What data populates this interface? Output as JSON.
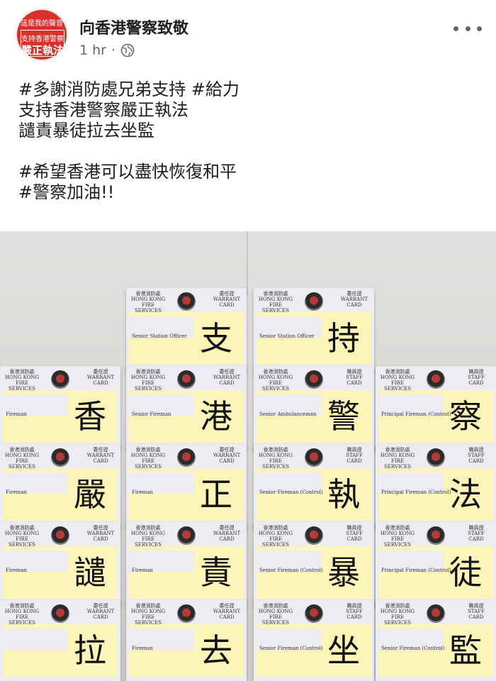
{
  "post": {
    "page_name": "向香港警察致敬",
    "time": "1 hr",
    "separator": "·",
    "avatar": {
      "top": "這是我的聲音",
      "line1": "支持香港警察",
      "line2": "嚴正執法"
    },
    "text_lines": [
      "#多謝消防處兄弟支持 #給力",
      "支持香港警察嚴正執法",
      "譴責暴徒拉去坐監",
      "",
      "#希望香港可以盡快恢復和平",
      "#警察加油!!"
    ]
  },
  "photo": {
    "cards": [
      {
        "glyph": "支",
        "rank": "Senior Station Officer",
        "hdr": "香港消防處 HONG KONG FIRE SERVICES DEPARTMENT",
        "hdr2": "委任證 WARRANT CARD"
      },
      {
        "glyph": "持",
        "rank": "Senior Station Officer",
        "hdr": "香港消防處 HONG KONG FIRE SERVICES DEPARTMENT",
        "hdr2": "委任證 WARRANT CARD"
      },
      {
        "glyph": "香",
        "rank": "Fireman",
        "hdr": "香港消防處 HONG KONG FIRE SERVICES",
        "hdr2": "委任證 WARRANT CARD"
      },
      {
        "glyph": "港",
        "rank": "Senior Fireman",
        "hdr": "香港消防處 HONG KONG FIRE SERVICES DEPARTMENT",
        "hdr2": "委任證 WARRANT CARD"
      },
      {
        "glyph": "警",
        "rank": "Senior Ambulanceman",
        "hdr": "香港消防處 HONG KONG FIRE SERVICES DEPARTMENT",
        "hdr2": "職員證 STAFF CARD"
      },
      {
        "glyph": "察",
        "rank": "Principal Fireman (Control)",
        "hdr": "香港消防處 HONG KONG FIRE SERVICES DEPARTMENT",
        "hdr2": "職員證 STAFF CARD"
      },
      {
        "glyph": "嚴",
        "rank": "Fireman",
        "hdr": "香港消防處 HONG KONG FIRE SERVICES",
        "hdr2": "委任證 WARRANT CARD"
      },
      {
        "glyph": "正",
        "rank": "Fireman",
        "hdr": "香港消防處 HONG KONG FIRE SERVICES DEPARTMENT",
        "hdr2": "委任證 WARRANT CARD"
      },
      {
        "glyph": "執",
        "rank": "Senior Fireman (Control)",
        "hdr": "香港消防處 HONG KONG FIRE SERVICES DEPARTMENT",
        "hdr2": "職員證 STAFF CARD"
      },
      {
        "glyph": "法",
        "rank": "Principal Fireman (Control)",
        "hdr": "香港消防處 HONG KONG FIRE SERVICES DEPARTMENT",
        "hdr2": "職員證 STAFF CARD"
      },
      {
        "glyph": "譴",
        "rank": "Fireman",
        "hdr": "香港消防處 HONG KONG FIRE SERVICES",
        "hdr2": "委任證 WARRANT CARD"
      },
      {
        "glyph": "責",
        "rank": "Fireman",
        "hdr": "香港消防處 HONG KONG FIRE SERVICES DEPARTMENT",
        "hdr2": "委任證 WARRANT CARD"
      },
      {
        "glyph": "暴",
        "rank": "Senior Fireman (Control)",
        "hdr": "香港消防處 HONG KONG FIRE SERVICES DEPARTMENT",
        "hdr2": "職員證 STAFF CARD"
      },
      {
        "glyph": "徒",
        "rank": "Principal Fireman (Control)",
        "hdr": "香港消防處 HONG KONG FIRE SERVICES DEPARTMENT",
        "hdr2": "職員證 STAFF CARD"
      },
      {
        "glyph": "拉",
        "rank": "",
        "hdr": "香港消防處 HONG KONG FIRE SERVICES",
        "hdr2": "委任證 WARRANT CARD"
      },
      {
        "glyph": "去",
        "rank": "Fireman",
        "hdr": "香港消防處 HONG KONG FIRE SERVICES DEPARTMENT",
        "hdr2": "委任證 WARRANT CARD"
      },
      {
        "glyph": "坐",
        "rank": "Senior Fireman (Control)",
        "hdr": "香港消防處 HONG KONG FIRE SERVICES DEPARTMENT",
        "hdr2": "職員證 STAFF CARD"
      },
      {
        "glyph": "監",
        "rank": "Senior Fireman (Control)",
        "hdr": "香港消防處 HONG KONG FIRE SERVICES DEPARTMENT",
        "hdr2": "職員證 STAFF CARD"
      }
    ]
  }
}
